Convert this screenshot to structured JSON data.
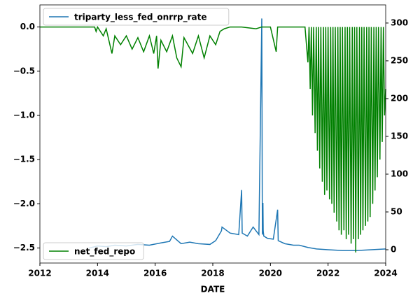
{
  "chart_data": {
    "type": "line",
    "xlabel": "DATE",
    "xlim": [
      2012,
      2024
    ],
    "xticks": [
      2012,
      2014,
      2016,
      2018,
      2020,
      2022,
      2024
    ],
    "ylim": [
      -2.67,
      0.25
    ],
    "yticks": [
      {
        "value": -2.5,
        "label": "−2.5"
      },
      {
        "value": -2.0,
        "label": "−2.0"
      },
      {
        "value": -1.5,
        "label": "−1.5"
      },
      {
        "value": -1.0,
        "label": "−1.0"
      },
      {
        "value": -0.5,
        "label": "−0.5"
      },
      {
        "value": 0,
        "label": "0.0"
      }
    ],
    "y2lim": [
      -17.6,
      324
    ],
    "y2ticks": [
      0,
      50,
      100,
      150,
      200,
      250,
      300
    ],
    "series": [
      {
        "name": "triparty_less_fed_onrrp_rate",
        "color": "#1f77b4",
        "axis": "y2",
        "legend": "upper left",
        "x": [
          2013.7,
          2014.0,
          2014.3,
          2014.6,
          2015.0,
          2015.4,
          2015.8,
          2016.2,
          2016.5,
          2016.6,
          2016.9,
          2017.2,
          2017.5,
          2017.9,
          2018.1,
          2018.3,
          2018.32,
          2018.6,
          2018.9,
          2019.0,
          2019.02,
          2019.2,
          2019.4,
          2019.6,
          2019.7,
          2019.72,
          2019.74,
          2019.75,
          2019.77,
          2019.9,
          2020.1,
          2020.25,
          2020.27,
          2020.5,
          2020.8,
          2021.0,
          2021.3,
          2021.6,
          2022.0,
          2022.5,
          2023.0,
          2023.5,
          2024.0
        ],
        "values": [
          2,
          5,
          4,
          6,
          5,
          7,
          6,
          9,
          11,
          18,
          8,
          10,
          8,
          7,
          12,
          25,
          30,
          22,
          20,
          79,
          22,
          18,
          30,
          20,
          306,
          20,
          62,
          25,
          18,
          15,
          14,
          53,
          12,
          8,
          6,
          6,
          3,
          1,
          0,
          -1,
          -1,
          0,
          1
        ]
      },
      {
        "name": "net_fed_repo",
        "color": "#008000",
        "axis": "y",
        "legend": "lower left",
        "x": [
          2012.0,
          2013.9,
          2013.95,
          2014.0,
          2014.2,
          2014.3,
          2014.5,
          2014.6,
          2014.8,
          2015.0,
          2015.2,
          2015.4,
          2015.6,
          2015.8,
          2015.95,
          2016.05,
          2016.1,
          2016.2,
          2016.4,
          2016.6,
          2016.75,
          2016.9,
          2017.0,
          2017.3,
          2017.5,
          2017.7,
          2017.9,
          2018.1,
          2018.25,
          2018.4,
          2018.6,
          2019.0,
          2019.5,
          2019.7,
          2020.0,
          2020.2,
          2020.25,
          2021.0,
          2021.2,
          2021.3,
          2021.34,
          2021.38,
          2021.42,
          2021.46,
          2021.5,
          2021.55,
          2021.59,
          2021.63,
          2021.67,
          2021.71,
          2021.75,
          2021.8,
          2021.84,
          2021.88,
          2021.92,
          2021.96,
          2022.0,
          2022.05,
          2022.09,
          2022.13,
          2022.17,
          2022.21,
          2022.25,
          2022.3,
          2022.34,
          2022.38,
          2022.42,
          2022.46,
          2022.5,
          2022.55,
          2022.59,
          2022.63,
          2022.67,
          2022.71,
          2022.75,
          2022.8,
          2022.84,
          2022.88,
          2022.92,
          2022.96,
          2023.0,
          2023.05,
          2023.09,
          2023.13,
          2023.17,
          2023.21,
          2023.25,
          2023.3,
          2023.34,
          2023.38,
          2023.42,
          2023.46,
          2023.5,
          2023.55,
          2023.59,
          2023.63,
          2023.67,
          2023.71,
          2023.75,
          2023.8,
          2023.84,
          2023.88,
          2023.92,
          2023.96,
          2024.0
        ],
        "values": [
          0,
          0,
          -0.05,
          0,
          -0.1,
          -0.02,
          -0.3,
          -0.1,
          -0.2,
          -0.1,
          -0.25,
          -0.12,
          -0.28,
          -0.1,
          -0.3,
          -0.1,
          -0.47,
          -0.15,
          -0.28,
          -0.1,
          -0.35,
          -0.45,
          -0.12,
          -0.3,
          -0.1,
          -0.35,
          -0.1,
          -0.2,
          -0.05,
          -0.02,
          0,
          0,
          -0.02,
          0,
          0,
          -0.28,
          0,
          0,
          0,
          -0.4,
          0,
          -0.7,
          0,
          -1.0,
          0,
          -1.2,
          0,
          -1.4,
          0,
          -1.6,
          0,
          -1.75,
          0,
          -1.9,
          0,
          -1.85,
          0,
          -1.95,
          0,
          -2.0,
          0,
          -2.1,
          0,
          -2.2,
          0,
          -2.3,
          0,
          -2.35,
          0,
          -2.3,
          0,
          -2.4,
          0,
          -2.35,
          0,
          -2.45,
          0,
          -2.4,
          0,
          -2.55,
          0,
          -2.4,
          0,
          -2.35,
          0,
          -2.3,
          0,
          -2.25,
          0,
          -2.2,
          0,
          -2.15,
          0,
          -2.0,
          0,
          -1.85,
          0,
          -1.7,
          0,
          -1.5,
          0,
          -1.3,
          0,
          -1.0,
          -0.7
        ]
      }
    ]
  }
}
